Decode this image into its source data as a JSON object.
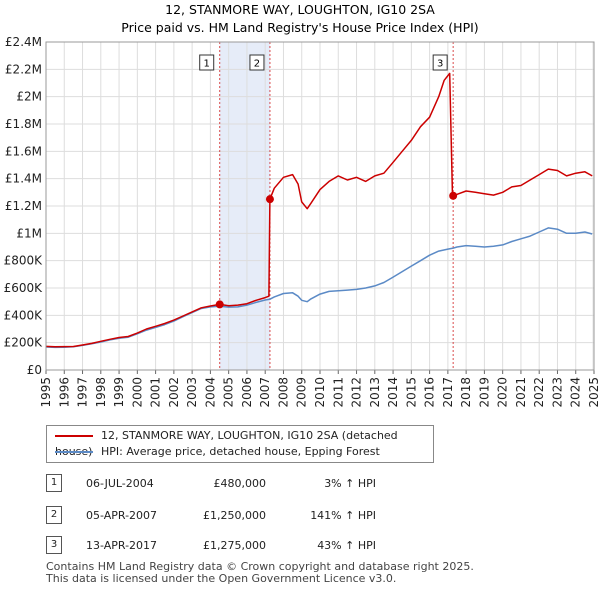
{
  "chart_data": {
    "type": "line",
    "title": "12, STANMORE WAY, LOUGHTON, IG10 2SA",
    "subtitle": "Price paid vs. HM Land Registry's House Price Index (HPI)",
    "xlim": [
      1995,
      2025
    ],
    "ylim": [
      0,
      2400000
    ],
    "yticks": [
      0,
      200000,
      400000,
      600000,
      800000,
      1000000,
      1200000,
      1400000,
      1600000,
      1800000,
      2000000,
      2200000,
      2400000
    ],
    "ytick_labels": [
      "£0",
      "£200K",
      "£400K",
      "£600K",
      "£800K",
      "£1M",
      "£1.2M",
      "£1.4M",
      "£1.6M",
      "£1.8M",
      "£2M",
      "£2.2M",
      "£2.4M"
    ],
    "xticks": [
      1995,
      1996,
      1997,
      1998,
      1999,
      2000,
      2001,
      2002,
      2003,
      2004,
      2005,
      2006,
      2007,
      2008,
      2009,
      2010,
      2011,
      2012,
      2013,
      2014,
      2015,
      2016,
      2017,
      2018,
      2019,
      2020,
      2021,
      2022,
      2023,
      2024,
      2025
    ],
    "xtick_labels": [
      "1995",
      "1996",
      "1997",
      "1998",
      "1999",
      "2000",
      "2001",
      "2002",
      "2003",
      "2004",
      "2005",
      "2006",
      "2007",
      "2008",
      "2009",
      "2010",
      "2011",
      "2012",
      "2013",
      "2014",
      "2015",
      "2016",
      "2017",
      "2018",
      "2019",
      "2020",
      "2021",
      "2022",
      "2023",
      "2024",
      "2025"
    ],
    "shaded_regions": [
      [
        2004.51,
        2007.26
      ]
    ],
    "grid": true,
    "series": [
      {
        "name": "12, STANMORE WAY, LOUGHTON, IG10 2SA (detached house)",
        "color": "#cc0000",
        "points": [
          [
            1995.0,
            173000
          ],
          [
            1995.5,
            170000
          ],
          [
            1996.0,
            171000
          ],
          [
            1996.5,
            172000
          ],
          [
            1997.0,
            183000
          ],
          [
            1997.5,
            195000
          ],
          [
            1998.0,
            210000
          ],
          [
            1998.5,
            225000
          ],
          [
            1999.0,
            238000
          ],
          [
            1999.5,
            245000
          ],
          [
            2000.0,
            270000
          ],
          [
            2000.5,
            300000
          ],
          [
            2001.0,
            320000
          ],
          [
            2001.5,
            340000
          ],
          [
            2002.0,
            365000
          ],
          [
            2002.5,
            395000
          ],
          [
            2003.0,
            425000
          ],
          [
            2003.5,
            455000
          ],
          [
            2004.0,
            468000
          ],
          [
            2004.51,
            480000
          ],
          [
            2005.0,
            470000
          ],
          [
            2005.5,
            475000
          ],
          [
            2006.0,
            485000
          ],
          [
            2006.5,
            510000
          ],
          [
            2007.0,
            530000
          ],
          [
            2007.2,
            540000
          ],
          [
            2007.26,
            1250000
          ],
          [
            2007.5,
            1330000
          ],
          [
            2008.0,
            1410000
          ],
          [
            2008.5,
            1430000
          ],
          [
            2008.8,
            1360000
          ],
          [
            2009.0,
            1230000
          ],
          [
            2009.3,
            1180000
          ],
          [
            2009.5,
            1220000
          ],
          [
            2010.0,
            1320000
          ],
          [
            2010.5,
            1380000
          ],
          [
            2011.0,
            1420000
          ],
          [
            2011.5,
            1390000
          ],
          [
            2012.0,
            1410000
          ],
          [
            2012.5,
            1380000
          ],
          [
            2013.0,
            1420000
          ],
          [
            2013.5,
            1440000
          ],
          [
            2014.0,
            1520000
          ],
          [
            2014.5,
            1600000
          ],
          [
            2015.0,
            1680000
          ],
          [
            2015.5,
            1780000
          ],
          [
            2016.0,
            1850000
          ],
          [
            2016.5,
            2000000
          ],
          [
            2016.8,
            2120000
          ],
          [
            2017.1,
            2170000
          ],
          [
            2017.25,
            1300000
          ],
          [
            2017.29,
            1275000
          ],
          [
            2017.6,
            1290000
          ],
          [
            2018.0,
            1310000
          ],
          [
            2018.5,
            1300000
          ],
          [
            2019.0,
            1290000
          ],
          [
            2019.5,
            1280000
          ],
          [
            2020.0,
            1300000
          ],
          [
            2020.5,
            1340000
          ],
          [
            2021.0,
            1350000
          ],
          [
            2021.5,
            1390000
          ],
          [
            2022.0,
            1430000
          ],
          [
            2022.5,
            1470000
          ],
          [
            2023.0,
            1460000
          ],
          [
            2023.5,
            1420000
          ],
          [
            2024.0,
            1440000
          ],
          [
            2024.5,
            1450000
          ],
          [
            2024.9,
            1420000
          ]
        ]
      },
      {
        "name": "HPI: Average price, detached house, Epping Forest",
        "color": "#5b8ac6",
        "points": [
          [
            1995.0,
            168000
          ],
          [
            1995.5,
            165000
          ],
          [
            1996.0,
            167000
          ],
          [
            1996.5,
            170000
          ],
          [
            1997.0,
            180000
          ],
          [
            1997.5,
            192000
          ],
          [
            1998.0,
            205000
          ],
          [
            1998.5,
            220000
          ],
          [
            1999.0,
            232000
          ],
          [
            1999.5,
            240000
          ],
          [
            2000.0,
            265000
          ],
          [
            2000.5,
            292000
          ],
          [
            2001.0,
            312000
          ],
          [
            2001.5,
            332000
          ],
          [
            2002.0,
            358000
          ],
          [
            2002.5,
            390000
          ],
          [
            2003.0,
            420000
          ],
          [
            2003.5,
            450000
          ],
          [
            2004.0,
            462000
          ],
          [
            2004.51,
            466000
          ],
          [
            2005.0,
            460000
          ],
          [
            2005.5,
            462000
          ],
          [
            2006.0,
            475000
          ],
          [
            2006.5,
            495000
          ],
          [
            2007.0,
            512000
          ],
          [
            2007.26,
            518000
          ],
          [
            2007.5,
            535000
          ],
          [
            2008.0,
            560000
          ],
          [
            2008.5,
            565000
          ],
          [
            2008.8,
            540000
          ],
          [
            2009.0,
            510000
          ],
          [
            2009.3,
            500000
          ],
          [
            2009.5,
            520000
          ],
          [
            2010.0,
            555000
          ],
          [
            2010.5,
            575000
          ],
          [
            2011.0,
            580000
          ],
          [
            2011.5,
            585000
          ],
          [
            2012.0,
            590000
          ],
          [
            2012.5,
            600000
          ],
          [
            2013.0,
            615000
          ],
          [
            2013.5,
            640000
          ],
          [
            2014.0,
            680000
          ],
          [
            2014.5,
            720000
          ],
          [
            2015.0,
            760000
          ],
          [
            2015.5,
            800000
          ],
          [
            2016.0,
            840000
          ],
          [
            2016.5,
            870000
          ],
          [
            2017.0,
            885000
          ],
          [
            2017.29,
            892000
          ],
          [
            2017.5,
            900000
          ],
          [
            2018.0,
            910000
          ],
          [
            2018.5,
            905000
          ],
          [
            2019.0,
            900000
          ],
          [
            2019.5,
            905000
          ],
          [
            2020.0,
            915000
          ],
          [
            2020.5,
            940000
          ],
          [
            2021.0,
            960000
          ],
          [
            2021.5,
            980000
          ],
          [
            2022.0,
            1010000
          ],
          [
            2022.5,
            1040000
          ],
          [
            2023.0,
            1030000
          ],
          [
            2023.5,
            1000000
          ],
          [
            2024.0,
            1000000
          ],
          [
            2024.5,
            1010000
          ],
          [
            2024.9,
            995000
          ]
        ]
      }
    ],
    "sales": [
      {
        "label": "1",
        "x": 2004.51,
        "y": 480000
      },
      {
        "label": "2",
        "x": 2007.26,
        "y": 1250000
      },
      {
        "label": "3",
        "x": 2017.29,
        "y": 1275000
      }
    ]
  },
  "legend": {
    "items": [
      {
        "label": "12, STANMORE WAY, LOUGHTON, IG10 2SA (detached house)",
        "color": "#cc0000"
      },
      {
        "label": "HPI: Average price, detached house, Epping Forest",
        "color": "#5b8ac6"
      }
    ]
  },
  "transactions": [
    {
      "num": "1",
      "date": "06-JUL-2004",
      "price": "£480,000",
      "hpi": "3% ↑ HPI"
    },
    {
      "num": "2",
      "date": "05-APR-2007",
      "price": "£1,250,000",
      "hpi": "141% ↑ HPI"
    },
    {
      "num": "3",
      "date": "13-APR-2017",
      "price": "£1,275,000",
      "hpi": "43% ↑ HPI"
    }
  ],
  "footer": {
    "line1": "Contains HM Land Registry data © Crown copyright and database right 2025.",
    "line2": "This data is licensed under the Open Government Licence v3.0."
  }
}
